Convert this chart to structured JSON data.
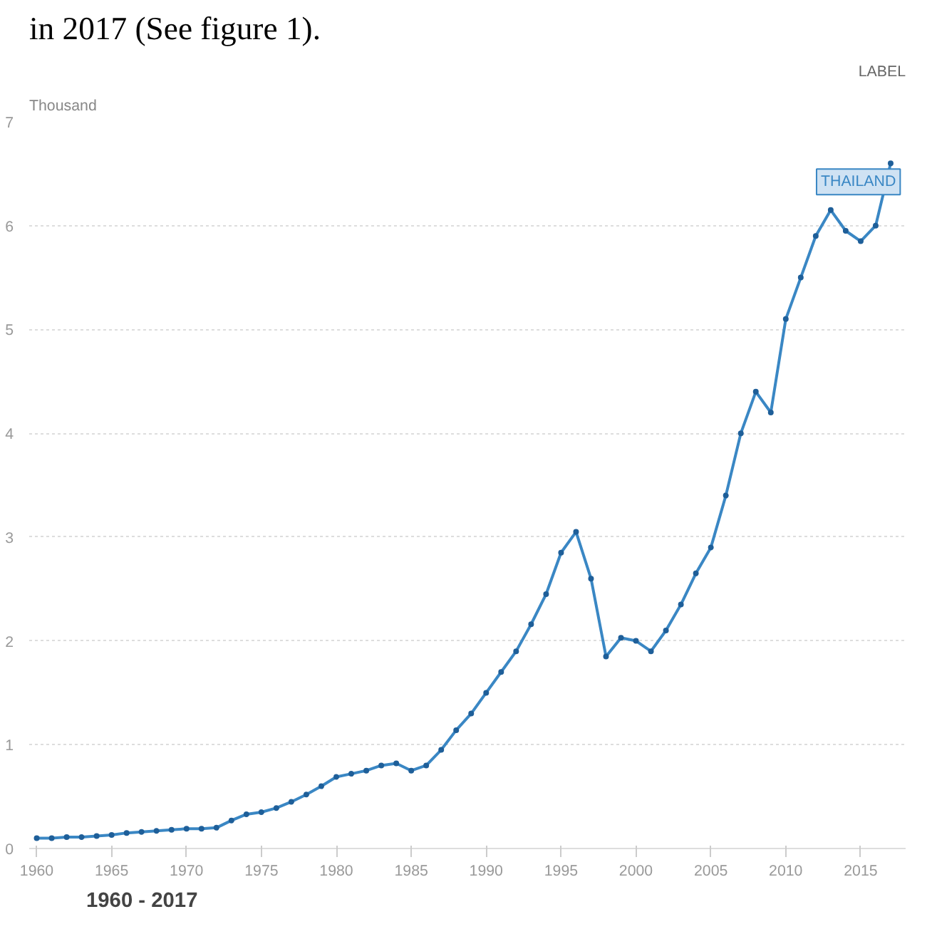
{
  "chart_data": {
    "type": "line",
    "title": "in 2017 (See figure 1).",
    "ylabel": "Thousand",
    "annotations": [
      "LABEL",
      "1960 - 2017"
    ],
    "x": [
      1960,
      1961,
      1962,
      1963,
      1964,
      1965,
      1966,
      1967,
      1968,
      1969,
      1970,
      1971,
      1972,
      1973,
      1974,
      1975,
      1976,
      1977,
      1978,
      1979,
      1980,
      1981,
      1982,
      1983,
      1984,
      1985,
      1986,
      1987,
      1988,
      1989,
      1990,
      1991,
      1992,
      1993,
      1994,
      1995,
      1996,
      1997,
      1998,
      1999,
      2000,
      2001,
      2002,
      2003,
      2004,
      2005,
      2006,
      2007,
      2008,
      2009,
      2010,
      2011,
      2012,
      2013,
      2014,
      2015,
      2016,
      2017
    ],
    "series": [
      {
        "name": "THAILAND",
        "color": "#3a87c4",
        "values": [
          0.1,
          0.1,
          0.11,
          0.11,
          0.12,
          0.13,
          0.15,
          0.16,
          0.17,
          0.18,
          0.19,
          0.19,
          0.2,
          0.27,
          0.33,
          0.35,
          0.39,
          0.45,
          0.52,
          0.6,
          0.69,
          0.72,
          0.75,
          0.8,
          0.82,
          0.75,
          0.8,
          0.95,
          1.14,
          1.3,
          1.5,
          1.7,
          1.9,
          2.16,
          2.45,
          2.85,
          3.05,
          2.6,
          1.85,
          2.03,
          2.0,
          1.9,
          2.1,
          2.35,
          2.65,
          2.9,
          3.4,
          4.0,
          4.4,
          4.2,
          5.1,
          5.5,
          5.9,
          6.15,
          5.95,
          5.85,
          6.0,
          6.6
        ]
      }
    ],
    "xlim": [
      1959.5,
      2018
    ],
    "ylim": [
      0,
      7
    ],
    "xticks": [
      1960,
      1965,
      1970,
      1975,
      1980,
      1985,
      1990,
      1995,
      2000,
      2005,
      2010,
      2015
    ],
    "yticks": [
      0,
      1,
      2,
      3,
      4,
      5,
      6,
      7
    ],
    "grid": "y",
    "marker": "circle",
    "line_style": "solid"
  }
}
